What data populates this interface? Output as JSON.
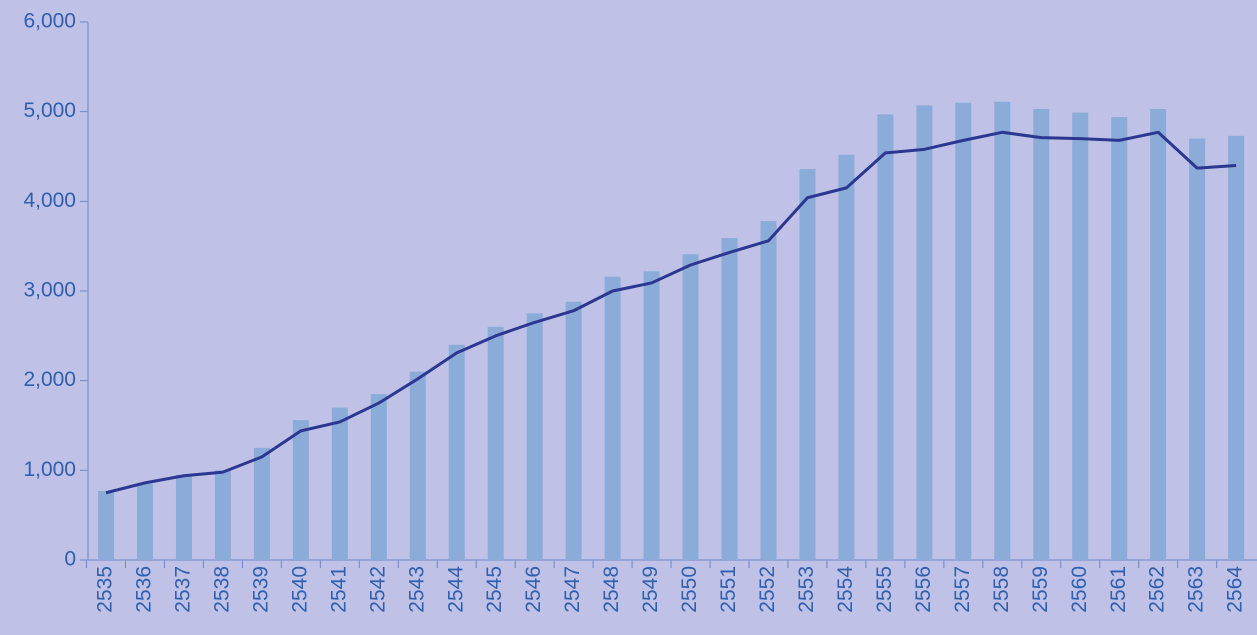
{
  "chart_data": {
    "type": "bar",
    "categories": [
      "2535",
      "2536",
      "2537",
      "2538",
      "2539",
      "2540",
      "2541",
      "2542",
      "2543",
      "2544",
      "2545",
      "2546",
      "2547",
      "2548",
      "2549",
      "2550",
      "2551",
      "2552",
      "2553",
      "2554",
      "2555",
      "2556",
      "2557",
      "2558",
      "2559",
      "2560",
      "2561",
      "2562",
      "2563",
      "2564"
    ],
    "series": [
      {
        "type": "bar",
        "color": "#8babd9",
        "values": [
          770,
          850,
          950,
          1000,
          1250,
          1560,
          1700,
          1850,
          2100,
          2400,
          2600,
          2750,
          2880,
          3160,
          3220,
          3410,
          3590,
          3780,
          4360,
          4520,
          4970,
          5070,
          5100,
          5110,
          5030,
          4990,
          4940,
          5030,
          4700,
          4730
        ]
      },
      {
        "type": "line",
        "color": "#2b3790",
        "values": [
          750,
          860,
          940,
          980,
          1150,
          1440,
          1540,
          1750,
          2020,
          2310,
          2500,
          2650,
          2780,
          3000,
          3090,
          3290,
          3430,
          3560,
          4040,
          4150,
          4540,
          4580,
          4680,
          4770,
          4710,
          4700,
          4680,
          4770,
          4370,
          4400
        ]
      }
    ],
    "ylim": [
      0,
      6000
    ],
    "yticks": [
      0,
      {
        "value": 1000,
        "label": "1,000"
      },
      {
        "value": 2000,
        "label": "2,000"
      },
      {
        "value": 3000,
        "label": "3,000"
      },
      {
        "value": 4000,
        "label": "4,000"
      },
      {
        "value": 5000,
        "label": "5,000"
      },
      {
        "value": 6000,
        "label": "6,000"
      }
    ]
  }
}
